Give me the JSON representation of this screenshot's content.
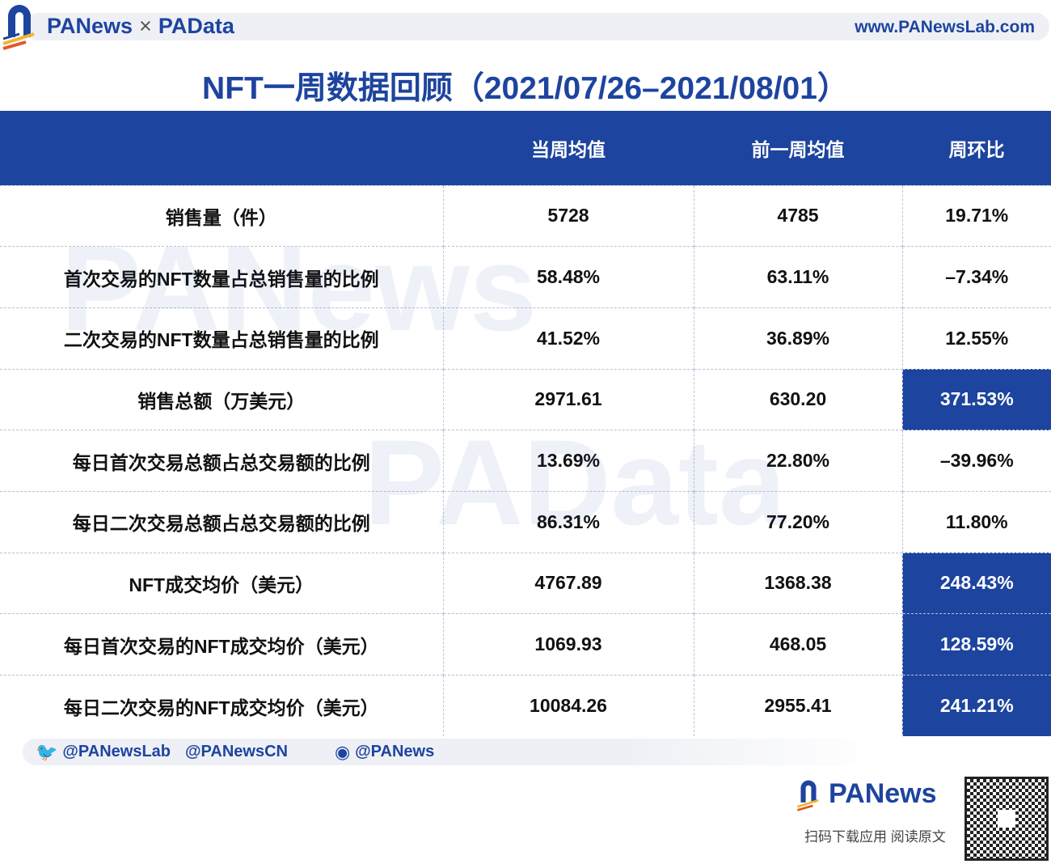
{
  "header": {
    "brand_left": "PANews",
    "separator": "×",
    "brand_right": "PAData",
    "url": "www.PANewsLab.com"
  },
  "title": "NFT一周数据回顾（2021/07/26–2021/08/01）",
  "watermarks": [
    "PANews",
    "PAData"
  ],
  "table": {
    "columns": [
      "",
      "当周均值",
      "前一周均值",
      "周环比"
    ],
    "rows": [
      {
        "label": "销售量（件）",
        "current": "5728",
        "previous": "4785",
        "change": "19.71%",
        "highlight": false
      },
      {
        "label": "首次交易的NFT数量占总销售量的比例",
        "current": "58.48%",
        "previous": "63.11%",
        "change": "–7.34%",
        "highlight": false
      },
      {
        "label": "二次交易的NFT数量占总销售量的比例",
        "current": "41.52%",
        "previous": "36.89%",
        "change": "12.55%",
        "highlight": false
      },
      {
        "label": "销售总额（万美元）",
        "current": "2971.61",
        "previous": "630.20",
        "change": "371.53%",
        "highlight": true
      },
      {
        "label": "每日首次交易总额占总交易额的比例",
        "current": "13.69%",
        "previous": "22.80%",
        "change": "–39.96%",
        "highlight": false
      },
      {
        "label": "每日二次交易总额占总交易额的比例",
        "current": "86.31%",
        "previous": "77.20%",
        "change": "11.80%",
        "highlight": false
      },
      {
        "label": "NFT成交均价（美元）",
        "current": "4767.89",
        "previous": "1368.38",
        "change": "248.43%",
        "highlight": true
      },
      {
        "label": "每日首次交易的NFT成交均价（美元）",
        "current": "1069.93",
        "previous": "468.05",
        "change": "128.59%",
        "highlight": true
      },
      {
        "label": "每日二次交易的NFT成交均价（美元）",
        "current": "10084.26",
        "previous": "2955.41",
        "change": "241.21%",
        "highlight": true
      }
    ]
  },
  "social": {
    "twitter1": "@PANewsLab",
    "twitter2": "@PANewsCN",
    "weibo": "@PANews"
  },
  "footer": {
    "brand": "PANews",
    "caption": "扫码下载应用  阅读原文"
  },
  "colors": {
    "brand": "#1d449e",
    "accent_orange": "#f08a24"
  }
}
